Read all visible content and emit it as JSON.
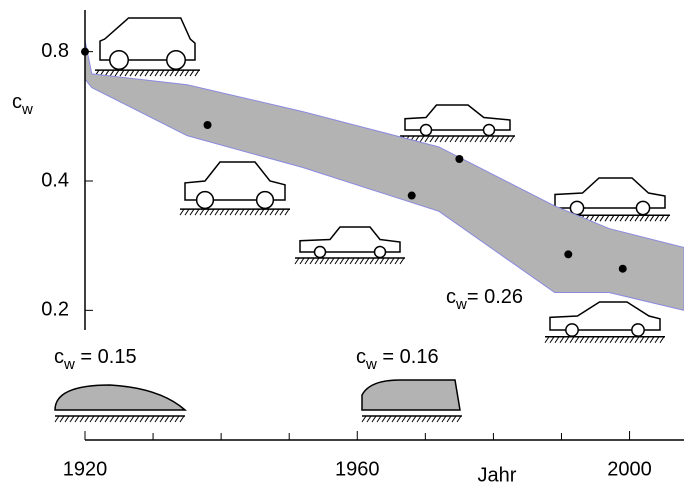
{
  "chart_data": {
    "type": "band-scatter",
    "xlabel": "Jahr",
    "ylabel": {
      "main": "c",
      "sub": "w"
    },
    "xlim": [
      1920,
      2008
    ],
    "xticks": [
      1920,
      1960,
      2000
    ],
    "x_minor_ticks": [
      1930,
      1940,
      1950,
      1970,
      1980,
      1990
    ],
    "ylim": [
      0.18,
      1.0
    ],
    "yticks": [
      0.8,
      0.4,
      0.2
    ],
    "log_y": true,
    "band": {
      "color": "#b3b3b3",
      "edge": "#8a8ae0",
      "x": [
        1920,
        1921,
        1935,
        1952,
        1972,
        1989,
        1997,
        2008
      ],
      "upper": [
        0.85,
        0.71,
        0.67,
        0.58,
        0.48,
        0.35,
        0.31,
        0.28
      ],
      "lower": [
        0.69,
        0.66,
        0.51,
        0.43,
        0.34,
        0.22,
        0.22,
        0.2
      ]
    },
    "points": {
      "color": "#000",
      "x": [
        1920,
        1938,
        1968,
        1975,
        1991,
        1999
      ],
      "values": [
        0.8,
        0.54,
        0.37,
        0.45,
        0.27,
        0.25
      ]
    },
    "annotations": [
      {
        "main": "c",
        "sub": "w",
        "rest": "= 0.26"
      },
      {
        "main": "c",
        "sub": "w",
        "rest": " = 0.15"
      },
      {
        "main": "c",
        "sub": "w",
        "rest": " = 0.16"
      }
    ]
  }
}
